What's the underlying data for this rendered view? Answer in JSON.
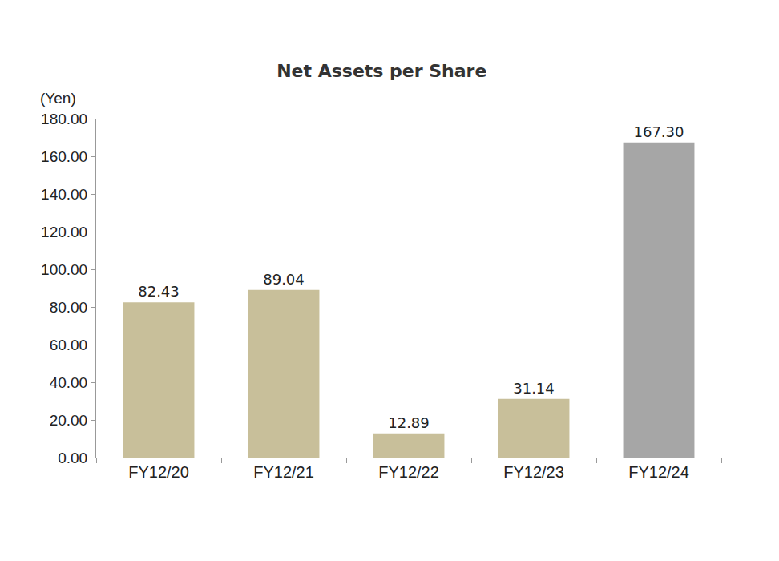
{
  "chart_data": {
    "type": "bar",
    "title": "Net Assets per Share",
    "ylabel": "(Yen)",
    "categories": [
      "FY12/20",
      "FY12/21",
      "FY12/22",
      "FY12/23",
      "FY12/24"
    ],
    "values": [
      82.43,
      89.04,
      12.89,
      31.14,
      167.3
    ],
    "value_labels": [
      "82.43",
      "89.04",
      "12.89",
      "31.14",
      "167.30"
    ],
    "colors": [
      "#c8bf9a",
      "#c8bf9a",
      "#c8bf9a",
      "#c8bf9a",
      "#a6a6a6"
    ],
    "ylim": [
      0,
      180
    ],
    "yticks": [
      {
        "value": 0,
        "label": "0.00"
      },
      {
        "value": 20,
        "label": "20.00"
      },
      {
        "value": 40,
        "label": "40.00"
      },
      {
        "value": 60,
        "label": "60.00"
      },
      {
        "value": 80,
        "label": "80.00"
      },
      {
        "value": 100,
        "label": "100.00"
      },
      {
        "value": 120,
        "label": "120.00"
      },
      {
        "value": 140,
        "label": "140.00"
      },
      {
        "value": 160,
        "label": "160.00"
      },
      {
        "value": 180,
        "label": "180.00"
      }
    ],
    "grid": false,
    "data_labels": true
  }
}
